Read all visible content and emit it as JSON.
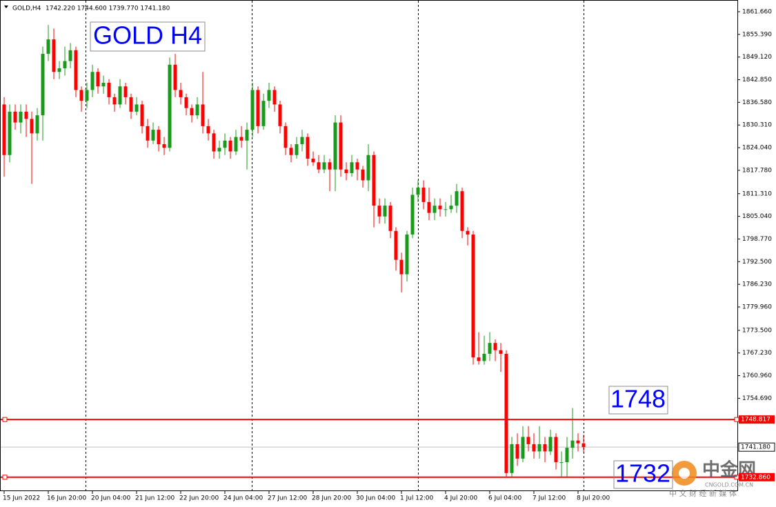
{
  "chart_data": {
    "type": "candlestick",
    "header": {
      "symbol": "GOLD,H4",
      "ohlc": "1742.220 1744.600 1739.770 1741.180"
    },
    "up_color": "#1a9a1a",
    "down_color": "#ff0000",
    "categories": [
      "15 Jun 2022",
      null,
      null,
      null,
      null,
      null,
      null,
      null,
      "16 Jun 20:00",
      null,
      null,
      null,
      null,
      null,
      null,
      null,
      "20 Jun 04:00",
      null,
      null,
      null,
      null,
      null,
      null,
      null,
      "21 Jun 12:00",
      null,
      null,
      null,
      null,
      null,
      null,
      null,
      "22 Jun 20:00",
      null,
      null,
      null,
      null,
      null,
      null,
      null,
      "24 Jun 04:00",
      null,
      null,
      null,
      null,
      null,
      null,
      null,
      "27 Jun 12:00",
      null,
      null,
      null,
      null,
      null,
      null,
      null,
      "28 Jun 20:00",
      null,
      null,
      null,
      null,
      null,
      null,
      null,
      "30 Jun 04:00",
      null,
      null,
      null,
      null,
      null,
      null,
      null,
      "1 Jul 12:00",
      null,
      null,
      null,
      null,
      null,
      null,
      null,
      "4 Jul 20:00",
      null,
      null,
      null,
      null,
      null,
      null,
      null,
      "6 Jul 04:00",
      null,
      null,
      null,
      null,
      null,
      null,
      null,
      "7 Jul 12:00",
      null,
      null,
      null,
      null,
      null,
      null,
      null,
      "8 Jul 20:00",
      null
    ],
    "ohlc": [
      [
        1836,
        1838,
        1816,
        1822
      ],
      [
        1822,
        1836,
        1820,
        1834
      ],
      [
        1834,
        1836,
        1829,
        1831
      ],
      [
        1831,
        1836,
        1828,
        1834
      ],
      [
        1834,
        1836,
        1827,
        1832
      ],
      [
        1832,
        1834,
        1814,
        1828
      ],
      [
        1828,
        1835,
        1826,
        1833
      ],
      [
        1833,
        1852,
        1826,
        1850
      ],
      [
        1850,
        1858,
        1848,
        1854
      ],
      [
        1854,
        1857,
        1843,
        1845
      ],
      [
        1845,
        1848,
        1843,
        1846
      ],
      [
        1846,
        1852,
        1844,
        1848
      ],
      [
        1848,
        1853,
        1846,
        1851
      ],
      [
        1851,
        1852,
        1838,
        1840
      ],
      [
        1840,
        1841,
        1834,
        1837
      ],
      [
        1837,
        1842,
        1835,
        1840
      ],
      [
        1840,
        1847,
        1838,
        1845
      ],
      [
        1845,
        1846,
        1839,
        1841
      ],
      [
        1841,
        1844,
        1839,
        1842
      ],
      [
        1842,
        1843,
        1836,
        1838
      ],
      [
        1838,
        1839,
        1834,
        1836
      ],
      [
        1836,
        1843,
        1835,
        1841
      ],
      [
        1841,
        1842,
        1836,
        1838
      ],
      [
        1838,
        1839,
        1832,
        1834
      ],
      [
        1834,
        1838,
        1833,
        1836
      ],
      [
        1836,
        1837,
        1828,
        1830
      ],
      [
        1830,
        1832,
        1824,
        1826
      ],
      [
        1826,
        1831,
        1825,
        1829
      ],
      [
        1829,
        1830,
        1823,
        1825
      ],
      [
        1825,
        1827,
        1822,
        1824
      ],
      [
        1824,
        1849,
        1823,
        1847
      ],
      [
        1847,
        1850,
        1838,
        1840
      ],
      [
        1840,
        1842,
        1836,
        1838
      ],
      [
        1838,
        1839,
        1833,
        1835
      ],
      [
        1835,
        1836,
        1831,
        1833
      ],
      [
        1833,
        1838,
        1832,
        1836
      ],
      [
        1836,
        1845,
        1828,
        1830
      ],
      [
        1830,
        1832,
        1826,
        1828
      ],
      [
        1828,
        1829,
        1821,
        1823
      ],
      [
        1823,
        1826,
        1821,
        1824
      ],
      [
        1824,
        1828,
        1822,
        1826
      ],
      [
        1826,
        1827,
        1821,
        1823
      ],
      [
        1823,
        1829,
        1822,
        1827
      ],
      [
        1827,
        1830,
        1824,
        1826
      ],
      [
        1826,
        1831,
        1818,
        1829
      ],
      [
        1829,
        1842,
        1827,
        1840
      ],
      [
        1840,
        1841,
        1828,
        1830
      ],
      [
        1830,
        1839,
        1829,
        1837
      ],
      [
        1837,
        1842,
        1835,
        1840
      ],
      [
        1840,
        1841,
        1834,
        1836
      ],
      [
        1836,
        1837,
        1828,
        1830
      ],
      [
        1830,
        1831,
        1822,
        1824
      ],
      [
        1824,
        1825,
        1820,
        1822
      ],
      [
        1822,
        1827,
        1821,
        1825
      ],
      [
        1825,
        1829,
        1823,
        1827
      ],
      [
        1827,
        1828,
        1819,
        1821
      ],
      [
        1821,
        1823,
        1819,
        1820
      ],
      [
        1820,
        1822,
        1817,
        1818
      ],
      [
        1818,
        1822,
        1817,
        1820
      ],
      [
        1820,
        1821,
        1812,
        1818
      ],
      [
        1818,
        1833,
        1812,
        1831
      ],
      [
        1831,
        1833,
        1816,
        1818
      ],
      [
        1818,
        1820,
        1815,
        1817
      ],
      [
        1817,
        1822,
        1816,
        1820
      ],
      [
        1820,
        1821,
        1815,
        1818
      ],
      [
        1818,
        1819,
        1813,
        1815
      ],
      [
        1815,
        1825,
        1812,
        1822
      ],
      [
        1822,
        1823,
        1802,
        1808
      ],
      [
        1808,
        1810,
        1803,
        1805
      ],
      [
        1805,
        1810,
        1803,
        1808
      ],
      [
        1808,
        1809,
        1799,
        1801
      ],
      [
        1801,
        1802,
        1790,
        1793
      ],
      [
        1793,
        1795,
        1784,
        1789
      ],
      [
        1789,
        1801,
        1787,
        1800
      ],
      [
        1800,
        1813,
        1799,
        1811
      ],
      [
        1811,
        1815,
        1809,
        1813
      ],
      [
        1813,
        1815,
        1807,
        1809
      ],
      [
        1809,
        1813,
        1804,
        1806
      ],
      [
        1806,
        1810,
        1804,
        1808
      ],
      [
        1808,
        1810,
        1805,
        1807
      ],
      [
        1807,
        1809,
        1805,
        1807
      ],
      [
        1807,
        1811,
        1806,
        1808
      ],
      [
        1808,
        1814,
        1806,
        1812
      ],
      [
        1812,
        1813,
        1799,
        1801
      ],
      [
        1801,
        1802,
        1797,
        1800
      ],
      [
        1800,
        1801,
        1764,
        1766
      ],
      [
        1766,
        1773,
        1764,
        1765
      ],
      [
        1765,
        1772,
        1764,
        1767
      ],
      [
        1767,
        1773,
        1765,
        1770
      ],
      [
        1770,
        1771,
        1765,
        1768
      ],
      [
        1768,
        1770,
        1762,
        1767
      ],
      [
        1767,
        1768,
        1732.9,
        1734
      ],
      [
        1734,
        1744,
        1733,
        1742
      ],
      [
        1742,
        1745,
        1736,
        1738
      ],
      [
        1738,
        1747,
        1737,
        1744
      ],
      [
        1744,
        1747,
        1740,
        1742
      ],
      [
        1742,
        1745,
        1738,
        1740
      ],
      [
        1740,
        1747,
        1738,
        1742
      ],
      [
        1742,
        1744,
        1737,
        1740
      ],
      [
        1740,
        1746,
        1739,
        1744
      ],
      [
        1744,
        1745,
        1735,
        1737
      ],
      [
        1737,
        1740,
        1733,
        1737
      ],
      [
        1737,
        1744,
        1733,
        1741
      ],
      [
        1741,
        1752,
        1738,
        1743
      ],
      [
        1743,
        1745,
        1740,
        1742.22
      ],
      [
        1742.22,
        1744.6,
        1739.77,
        1741.18
      ]
    ],
    "ylim": [
      1729.0,
      1864.9
    ],
    "yticks": [
      {
        "value": 1861.66,
        "label": "1861.660"
      },
      {
        "value": 1855.39,
        "label": "1855.390"
      },
      {
        "value": 1849.12,
        "label": "1849.120"
      },
      {
        "value": 1842.85,
        "label": "1842.850"
      },
      {
        "value": 1836.58,
        "label": "1836.580"
      },
      {
        "value": 1830.31,
        "label": "1830.310"
      },
      {
        "value": 1824.04,
        "label": "1824.040"
      },
      {
        "value": 1817.78,
        "label": "1817.780"
      },
      {
        "value": 1811.31,
        "label": "1811.310"
      },
      {
        "value": 1805.04,
        "label": "1805.040"
      },
      {
        "value": 1798.77,
        "label": "1798.770"
      },
      {
        "value": 1792.5,
        "label": "1792.500"
      },
      {
        "value": 1786.23,
        "label": "1786.230"
      },
      {
        "value": 1779.96,
        "label": "1779.960"
      },
      {
        "value": 1773.5,
        "label": "1773.500"
      },
      {
        "value": 1767.23,
        "label": "1767.230"
      },
      {
        "value": 1760.96,
        "label": "1760.960"
      },
      {
        "value": 1754.69,
        "label": "1754.690"
      }
    ],
    "hlines": [
      {
        "value": 1748.817,
        "label": "1748.817",
        "color": "#ff0000"
      },
      {
        "value": 1732.86,
        "label": "1732.860",
        "color": "#ff0000"
      }
    ],
    "price_line": {
      "value": 1741.18,
      "label": "1741.180",
      "color": "#c0c0c0"
    },
    "annotations": [
      "GOLD H4",
      "1748",
      "1732"
    ],
    "watermark": {
      "brand": "中金网",
      "site": "CNGOLD.COM.CN",
      "slogan": "中 文 财 经 新 媒 体"
    }
  }
}
